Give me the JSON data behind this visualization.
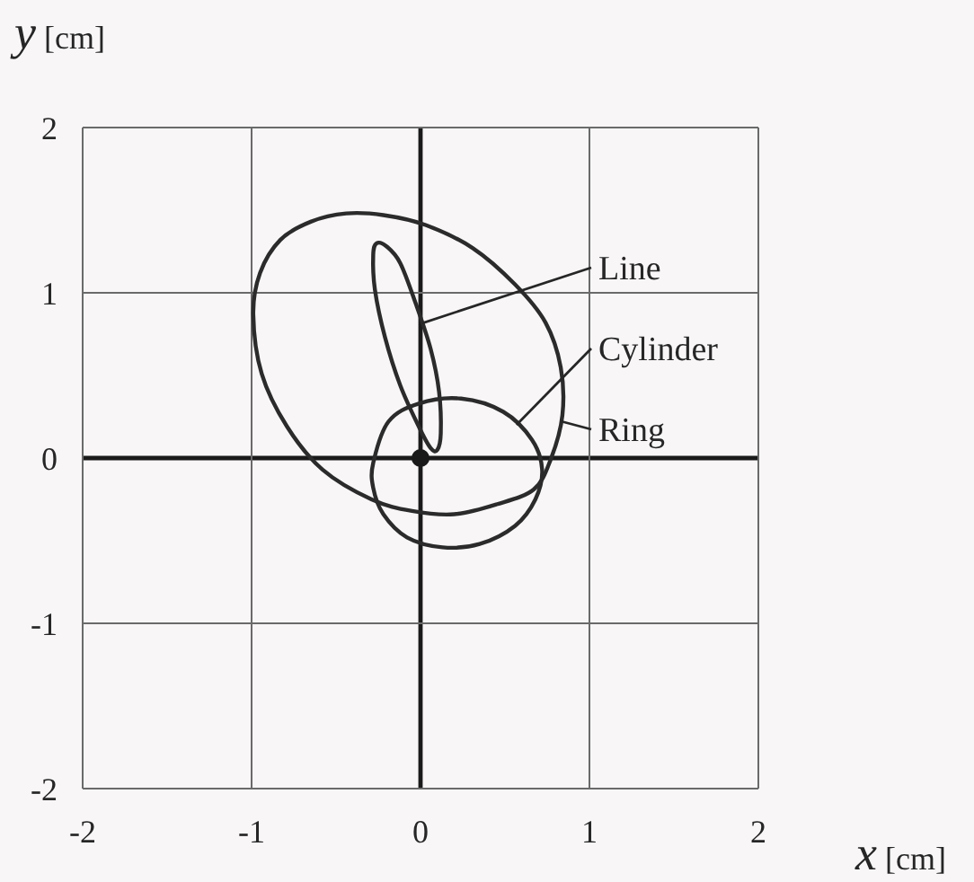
{
  "chart_data": {
    "type": "scatter",
    "xlabel": "x [cm]",
    "ylabel": "y [cm]",
    "xlim": [
      -2,
      2
    ],
    "ylim": [
      -2,
      2
    ],
    "xticks": [
      -2,
      -1,
      0,
      1,
      2
    ],
    "yticks": [
      -2,
      -1,
      0,
      1,
      2
    ],
    "grid": true,
    "marker": "circle",
    "x": [
      0
    ],
    "values": [
      0
    ],
    "color": "#1a1a1a",
    "annotations": [
      "Line",
      "Cylinder",
      "Ring"
    ]
  }
}
